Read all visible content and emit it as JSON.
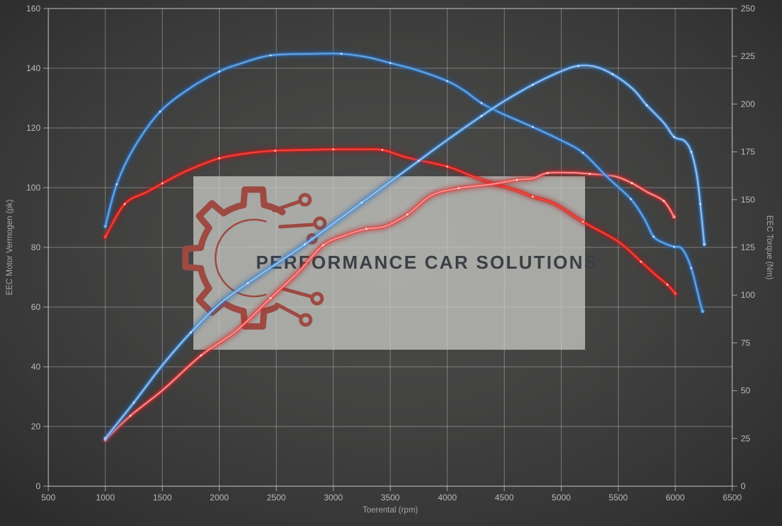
{
  "watermark": {
    "text": "PERFORMANCE CAR SOLUTIONS",
    "logo": "gear-circuit-icon",
    "logo_color": "#9c4a42",
    "box_color": "rgba(206,206,203,0.72)",
    "text_color": "#3b4046"
  },
  "colors": {
    "background": "#434342",
    "grid": "rgba(255,255,255,0.32)",
    "spine": "rgba(255,255,255,0.45)",
    "tick_label": "#b9b9b9",
    "blue_accent": "#4d94dd",
    "red_accent": "#e02a2a"
  },
  "chart_data": {
    "type": "line",
    "xlabel": "Toerental (rpm)",
    "ylabel_left": "EEC Motor Vermogen (pk)",
    "ylabel_right": "EEC Torque (Nm)",
    "x_range": [
      500,
      6500
    ],
    "y_left_range": [
      0,
      160
    ],
    "y_right_range": [
      0,
      250
    ],
    "x_ticks": [
      500,
      1000,
      1500,
      2000,
      2500,
      3000,
      3500,
      4000,
      4500,
      5000,
      5500,
      6000,
      6500
    ],
    "y_left_ticks": [
      0,
      20,
      40,
      60,
      80,
      100,
      120,
      140,
      160
    ],
    "y_right_ticks": [
      0,
      25,
      50,
      75,
      100,
      125,
      150,
      175,
      200,
      225,
      250
    ],
    "grid": "on",
    "legend": "none",
    "series": [
      {
        "name": "red-torque",
        "axis": "right",
        "unit": "Nm",
        "core": "#ff4438",
        "mid": "#d92020",
        "glow": "#a81414",
        "dot": "#ffd9d9",
        "points": [
          [
            1000,
            130.5
          ],
          [
            1170,
            147.7
          ],
          [
            1370,
            154.1
          ],
          [
            1500,
            158.5
          ],
          [
            1720,
            165.2
          ],
          [
            2000,
            171.6
          ],
          [
            2280,
            174.5
          ],
          [
            2490,
            175.6
          ],
          [
            2750,
            176.0
          ],
          [
            3000,
            176.3
          ],
          [
            3200,
            176.3
          ],
          [
            3430,
            176.0
          ],
          [
            3650,
            172.0
          ],
          [
            4000,
            167.3
          ],
          [
            4200,
            162.7
          ],
          [
            4400,
            158.4
          ],
          [
            4600,
            155.0
          ],
          [
            4750,
            151.5
          ],
          [
            4940,
            147.8
          ],
          [
            5190,
            138.4
          ],
          [
            5500,
            128.0
          ],
          [
            5700,
            117.5
          ],
          [
            5830,
            110.5
          ],
          [
            5930,
            105.5
          ],
          [
            6000,
            100.8
          ]
        ]
      },
      {
        "name": "red-power",
        "axis": "left",
        "unit": "pk",
        "core": "#ff9898",
        "mid": "#e84040",
        "glow": "#c01a1a",
        "dot": "#ffe8e8",
        "points": [
          [
            1000,
            15.5
          ],
          [
            1220,
            23.6
          ],
          [
            1510,
            32.4
          ],
          [
            1840,
            43.8
          ],
          [
            2150,
            52.1
          ],
          [
            2450,
            63
          ],
          [
            2700,
            72
          ],
          [
            2910,
            80.7
          ],
          [
            3100,
            84
          ],
          [
            3290,
            86.2
          ],
          [
            3450,
            87
          ],
          [
            3650,
            91
          ],
          [
            3860,
            97.4
          ],
          [
            4100,
            99.8
          ],
          [
            4400,
            101.2
          ],
          [
            4610,
            102.6
          ],
          [
            4750,
            103.1
          ],
          [
            4880,
            104.9
          ],
          [
            5100,
            105
          ],
          [
            5250,
            104.6
          ],
          [
            5470,
            103.8
          ],
          [
            5620,
            101.5
          ],
          [
            5750,
            98.6
          ],
          [
            5900,
            95.5
          ],
          [
            5990,
            90.2
          ]
        ]
      },
      {
        "name": "blue-torque",
        "axis": "right",
        "unit": "Nm",
        "core": "#6aabea",
        "mid": "#3a7fc9",
        "glow": "#1a57a0",
        "dot": "#d6e8fb",
        "points": [
          [
            1000,
            136
          ],
          [
            1100,
            158
          ],
          [
            1250,
            177
          ],
          [
            1480,
            196
          ],
          [
            1760,
            209
          ],
          [
            2000,
            217
          ],
          [
            2150,
            220.5
          ],
          [
            2450,
            225.5
          ],
          [
            2830,
            226.3
          ],
          [
            3070,
            226.3
          ],
          [
            3300,
            224.5
          ],
          [
            3500,
            221.5
          ],
          [
            3750,
            217.5
          ],
          [
            4000,
            212
          ],
          [
            4150,
            207
          ],
          [
            4300,
            200.5
          ],
          [
            4500,
            194.5
          ],
          [
            4750,
            188
          ],
          [
            5000,
            181
          ],
          [
            5190,
            174.5
          ],
          [
            5400,
            162
          ],
          [
            5610,
            150.3
          ],
          [
            5730,
            139.8
          ],
          [
            5810,
            130.6
          ],
          [
            5910,
            127
          ],
          [
            5990,
            125.3
          ],
          [
            6060,
            124.2
          ],
          [
            6140,
            114.2
          ],
          [
            6220,
            95.6
          ],
          [
            6240,
            91.5
          ]
        ]
      },
      {
        "name": "blue-power",
        "axis": "left",
        "unit": "pk",
        "core": "#9cc8f2",
        "mid": "#4d94dd",
        "glow": "#1e62ad",
        "dot": "#e4f0fc",
        "points": [
          [
            1000,
            16
          ],
          [
            1250,
            28
          ],
          [
            1500,
            40.5
          ],
          [
            1750,
            51.5
          ],
          [
            2000,
            61
          ],
          [
            2250,
            68
          ],
          [
            2500,
            74.5
          ],
          [
            2750,
            81
          ],
          [
            3000,
            88
          ],
          [
            3250,
            95
          ],
          [
            3500,
            102
          ],
          [
            3750,
            109
          ],
          [
            4000,
            116
          ],
          [
            4300,
            124
          ],
          [
            4500,
            129
          ],
          [
            4750,
            134.5
          ],
          [
            5000,
            139
          ],
          [
            5150,
            140.8
          ],
          [
            5300,
            140.5
          ],
          [
            5450,
            138
          ],
          [
            5630,
            133
          ],
          [
            5750,
            127.6
          ],
          [
            5900,
            121.7
          ],
          [
            5990,
            117
          ],
          [
            6080,
            115.7
          ],
          [
            6140,
            112
          ],
          [
            6190,
            104
          ],
          [
            6220,
            94.5
          ],
          [
            6255,
            81
          ]
        ]
      }
    ]
  }
}
